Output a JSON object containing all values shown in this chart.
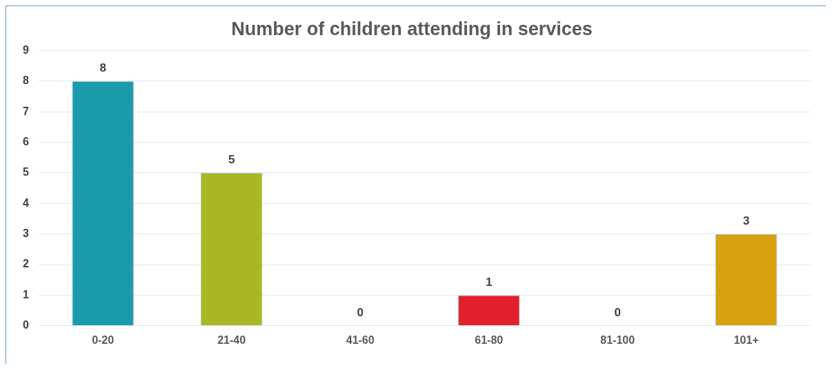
{
  "chart_data": {
    "type": "bar",
    "title": "Number of children attending in services",
    "categories": [
      "0-20",
      "21-40",
      "41-60",
      "61-80",
      "81-100",
      "101+"
    ],
    "values": [
      8,
      5,
      0,
      1,
      0,
      3
    ],
    "colors": [
      "#1a9bab",
      "#a9b724",
      "#7f7f7f",
      "#e2202c",
      "#7f7f7f",
      "#d6a10c"
    ],
    "ylim": [
      0,
      9
    ],
    "yticks": [
      0,
      1,
      2,
      3,
      4,
      5,
      6,
      7,
      8,
      9
    ],
    "grid": "y",
    "data_labels": true
  }
}
